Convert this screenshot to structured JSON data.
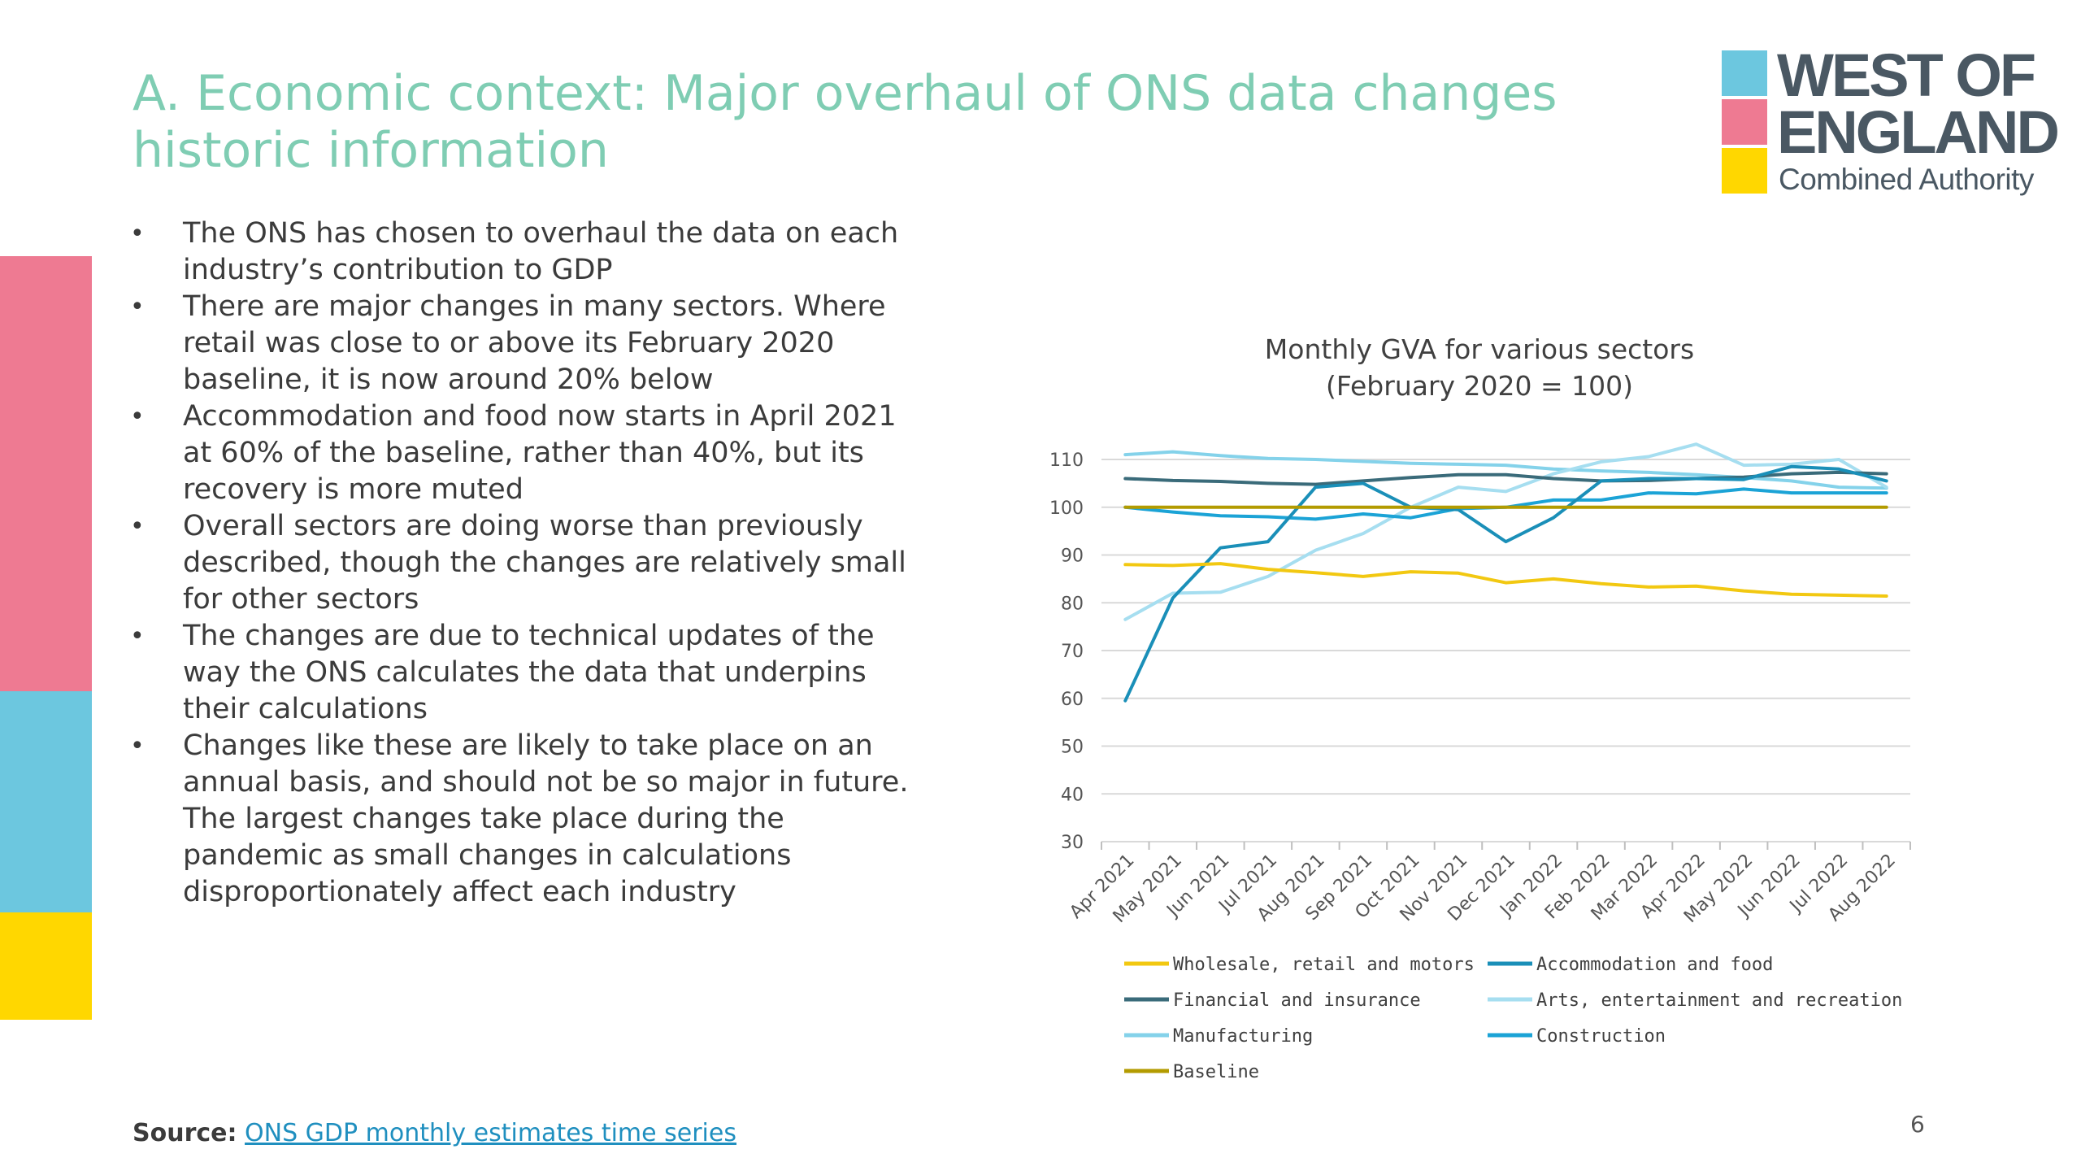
{
  "slide": {
    "title": "A. Economic context: Major overhaul of ONS data changes historic information",
    "bullets": [
      "The ONS has chosen to overhaul the data on each industry’s contribution to GDP",
      "There are major changes in many sectors. Where retail was close to or above its February 2020 baseline, it is now around 20% below",
      "Accommodation and food now starts in April 2021 at 60% of the baseline, rather than 40%, but its recovery is more muted",
      "Overall sectors are doing worse than previously described, though the changes are relatively small for other sectors",
      "The changes are due to technical updates of the way the ONS calculates the data that underpins their calculations",
      "Changes like these are likely to take place on an annual basis, and should not be so major in future. The largest changes take place during the pandemic as small changes in calculations disproportionately affect each industry"
    ],
    "source_label": "Source:",
    "source_link": "ONS GDP monthly estimates time series",
    "page_number": "6"
  },
  "logo": {
    "line1": "WEST OF",
    "line2": "ENGLAND",
    "line3": "Combined Authority"
  },
  "colors": {
    "title": "#7fcdb3",
    "accent_pink": "#ee7a92",
    "accent_blue": "#6cc7df",
    "accent_yellow": "#ffd700"
  },
  "chart_data": {
    "type": "line",
    "title": "Monthly GVA for various sectors",
    "subtitle": "(February 2020 = 100)",
    "ylim": [
      30,
      110
    ],
    "yticks": [
      30,
      40,
      50,
      60,
      70,
      80,
      90,
      100,
      110
    ],
    "grid": true,
    "legend_position": "bottom",
    "categories": [
      "Apr 2021",
      "May 2021",
      "Jun 2021",
      "Jul 2021",
      "Aug 2021",
      "Sep 2021",
      "Oct 2021",
      "Nov 2021",
      "Dec 2021",
      "Jan 2022",
      "Feb 2022",
      "Mar 2022",
      "Apr 2022",
      "May 2022",
      "Jun 2022",
      "Jul 2022",
      "Aug 2022"
    ],
    "series": [
      {
        "name": "Wholesale, retail and motors",
        "color": "#f2c811",
        "values": [
          88,
          87.8,
          88.2,
          87,
          86.3,
          85.5,
          86.5,
          86.2,
          84.2,
          85,
          84,
          83.3,
          83.5,
          82.5,
          81.8,
          81.6,
          81.4
        ]
      },
      {
        "name": "Accommodation and food",
        "color": "#1a8fb8",
        "values": [
          59.5,
          81,
          91.5,
          92.8,
          104.2,
          105,
          100,
          99.5,
          92.8,
          97.8,
          105.5,
          106,
          106,
          105.8,
          108.5,
          108,
          105.5
        ]
      },
      {
        "name": "Financial and insurance",
        "color": "#3a6b7a",
        "values": [
          106,
          105.6,
          105.4,
          105,
          104.8,
          105.5,
          106.2,
          106.8,
          106.8,
          106,
          105.5,
          105.6,
          106,
          106.3,
          107,
          107.3,
          107
        ]
      },
      {
        "name": "Arts, entertainment and recreation",
        "color": "#a6def0",
        "values": [
          76.5,
          82,
          82.2,
          85.5,
          91,
          94.5,
          100,
          104.2,
          103.3,
          107,
          109.5,
          110.6,
          113.2,
          108.8,
          109,
          110,
          104.2
        ]
      },
      {
        "name": "Manufacturing",
        "color": "#84d2ea",
        "values": [
          111,
          111.6,
          110.8,
          110.2,
          110,
          109.6,
          109.2,
          109,
          108.8,
          108,
          107.6,
          107.3,
          106.8,
          106.2,
          105.5,
          104.2,
          104
        ]
      },
      {
        "name": "Construction",
        "color": "#1ba3d6",
        "values": [
          100,
          99,
          98.2,
          98,
          97.5,
          98.6,
          97.8,
          99.7,
          100,
          101.5,
          101.5,
          103,
          102.8,
          103.8,
          103,
          103,
          103
        ]
      },
      {
        "name": "Baseline",
        "color": "#b39b00",
        "values": [
          100,
          100,
          100,
          100,
          100,
          100,
          100,
          100,
          100,
          100,
          100,
          100,
          100,
          100,
          100,
          100,
          100
        ]
      }
    ]
  }
}
